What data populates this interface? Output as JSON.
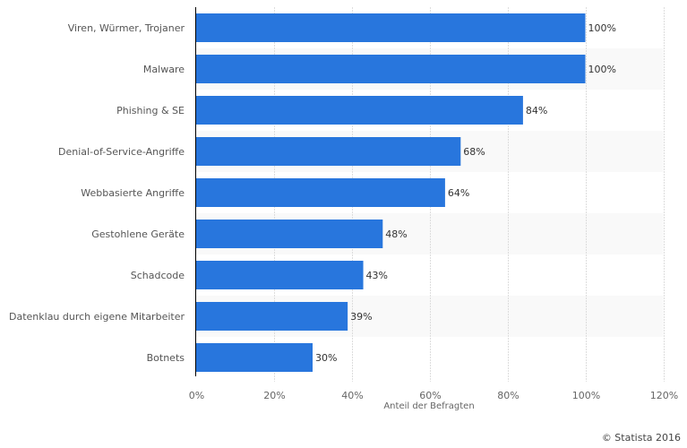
{
  "chart_data": {
    "type": "bar",
    "orientation": "horizontal",
    "categories": [
      "Viren, Würmer, Trojaner",
      "Malware",
      "Phishing & SE",
      "Denial-of-Service-Angriffe",
      "Webbasierte Angriffe",
      "Gestohlene Geräte",
      "Schadcode",
      "Datenklau durch eigene Mitarbeiter",
      "Botnets"
    ],
    "values": [
      100,
      100,
      84,
      68,
      64,
      48,
      43,
      39,
      30
    ],
    "value_labels": [
      "100%",
      "100%",
      "84%",
      "68%",
      "64%",
      "48%",
      "43%",
      "39%",
      "30%"
    ],
    "xlabel": "Anteil der Befragten",
    "ylabel": "",
    "xlim": [
      0,
      120
    ],
    "x_ticks": [
      0,
      20,
      40,
      60,
      80,
      100,
      120
    ],
    "x_tick_labels": [
      "0%",
      "20%",
      "40%",
      "60%",
      "80%",
      "100%",
      "120%"
    ],
    "grid": true,
    "bar_color": "#2876dd",
    "band_color": "#f9f9f9"
  },
  "credit": "© Statista 2016"
}
